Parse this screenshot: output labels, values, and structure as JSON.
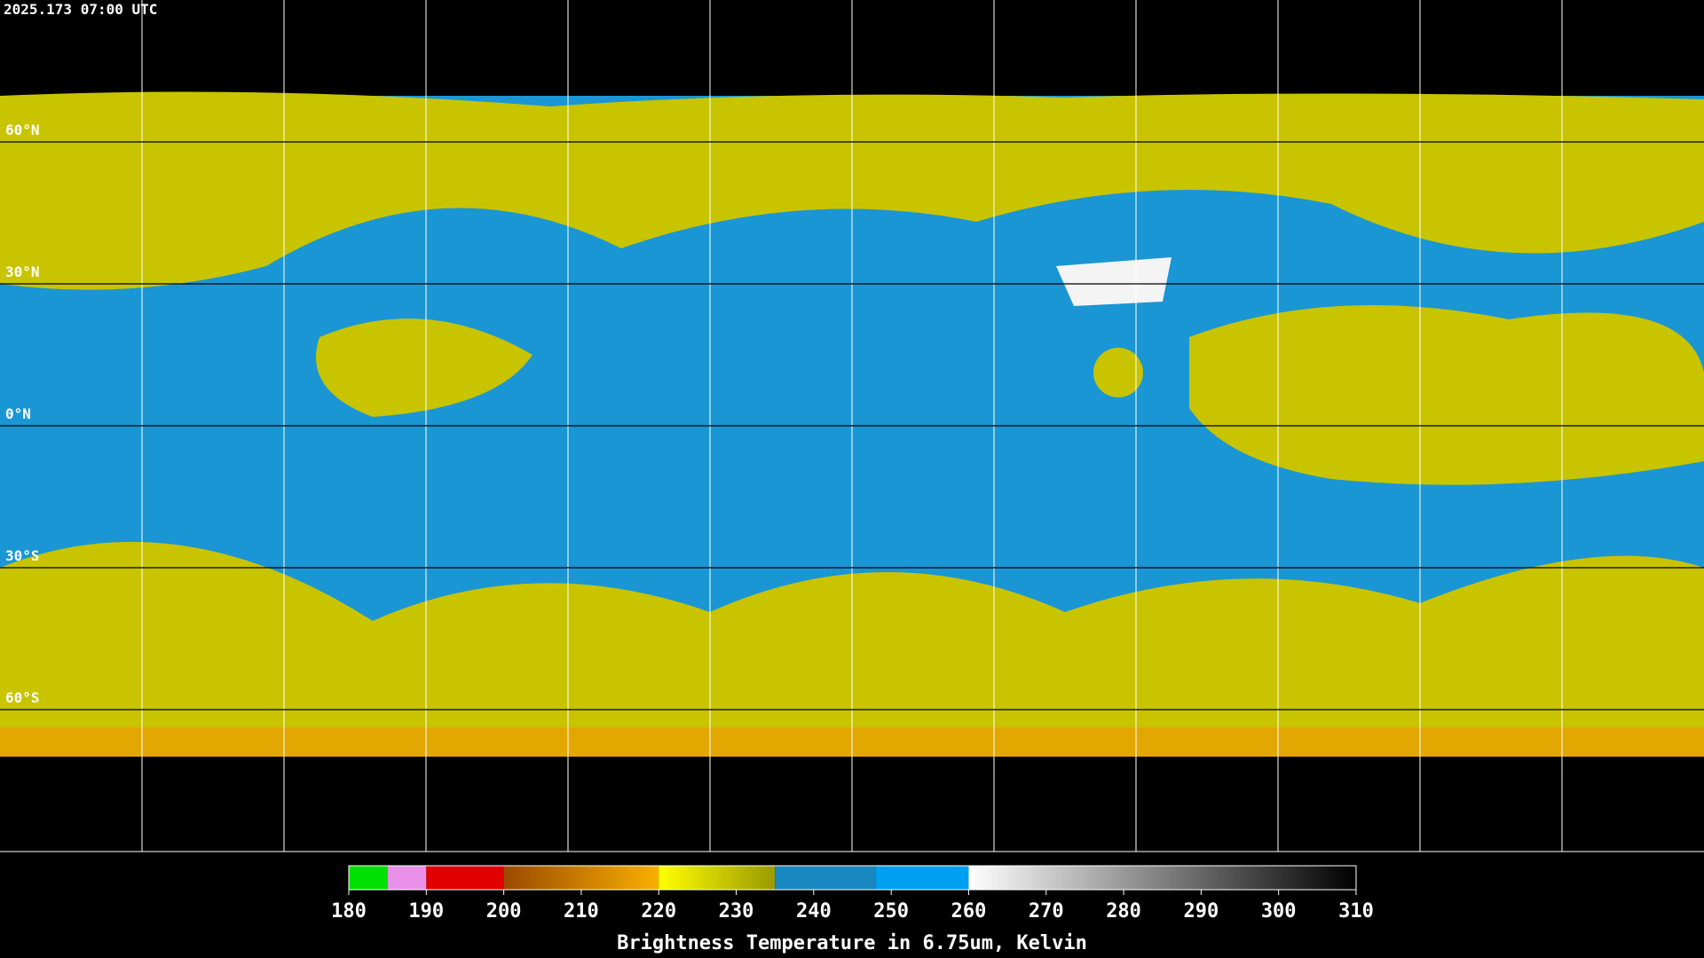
{
  "title": "2025.173 07:00 UTC",
  "map": {
    "latlim": [
      -90,
      90
    ],
    "lonlim": [
      -180,
      180
    ],
    "latitudes": [
      {
        "value": 60,
        "label": "60°N"
      },
      {
        "value": 30,
        "label": "30°N"
      },
      {
        "value": 0,
        "label": "0°N"
      },
      {
        "value": -30,
        "label": "30°S"
      },
      {
        "value": -60,
        "label": "60°S"
      }
    ],
    "longitudes": [
      -150,
      -120,
      -90,
      -60,
      -30,
      0,
      30,
      60,
      90,
      120,
      150
    ]
  },
  "colorbar": {
    "range": [
      180,
      310
    ],
    "ticks": [
      180,
      190,
      200,
      210,
      220,
      230,
      240,
      250,
      260,
      270,
      280,
      290,
      300,
      310
    ],
    "label": "Brightness Temperature in 6.75um, Kelvin",
    "segments": [
      {
        "from": 180,
        "to": 185,
        "colors": [
          "#00e000",
          "#00e000"
        ]
      },
      {
        "from": 185,
        "to": 190,
        "colors": [
          "#e890e8",
          "#e890e8"
        ]
      },
      {
        "from": 190,
        "to": 200,
        "colors": [
          "#e00000",
          "#e00000"
        ]
      },
      {
        "from": 200,
        "to": 220,
        "colors": [
          "#9a4a00",
          "#f8b000"
        ]
      },
      {
        "from": 220,
        "to": 235,
        "colors": [
          "#ffff00",
          "#9a9a00"
        ]
      },
      {
        "from": 235,
        "to": 248,
        "colors": [
          "#1a88c0",
          "#1a88c0"
        ]
      },
      {
        "from": 248,
        "to": 260,
        "colors": [
          "#00a0f0",
          "#00a0f0"
        ]
      },
      {
        "from": 260,
        "to": 310,
        "colors": [
          "#ffffff",
          "#000000"
        ]
      }
    ]
  }
}
